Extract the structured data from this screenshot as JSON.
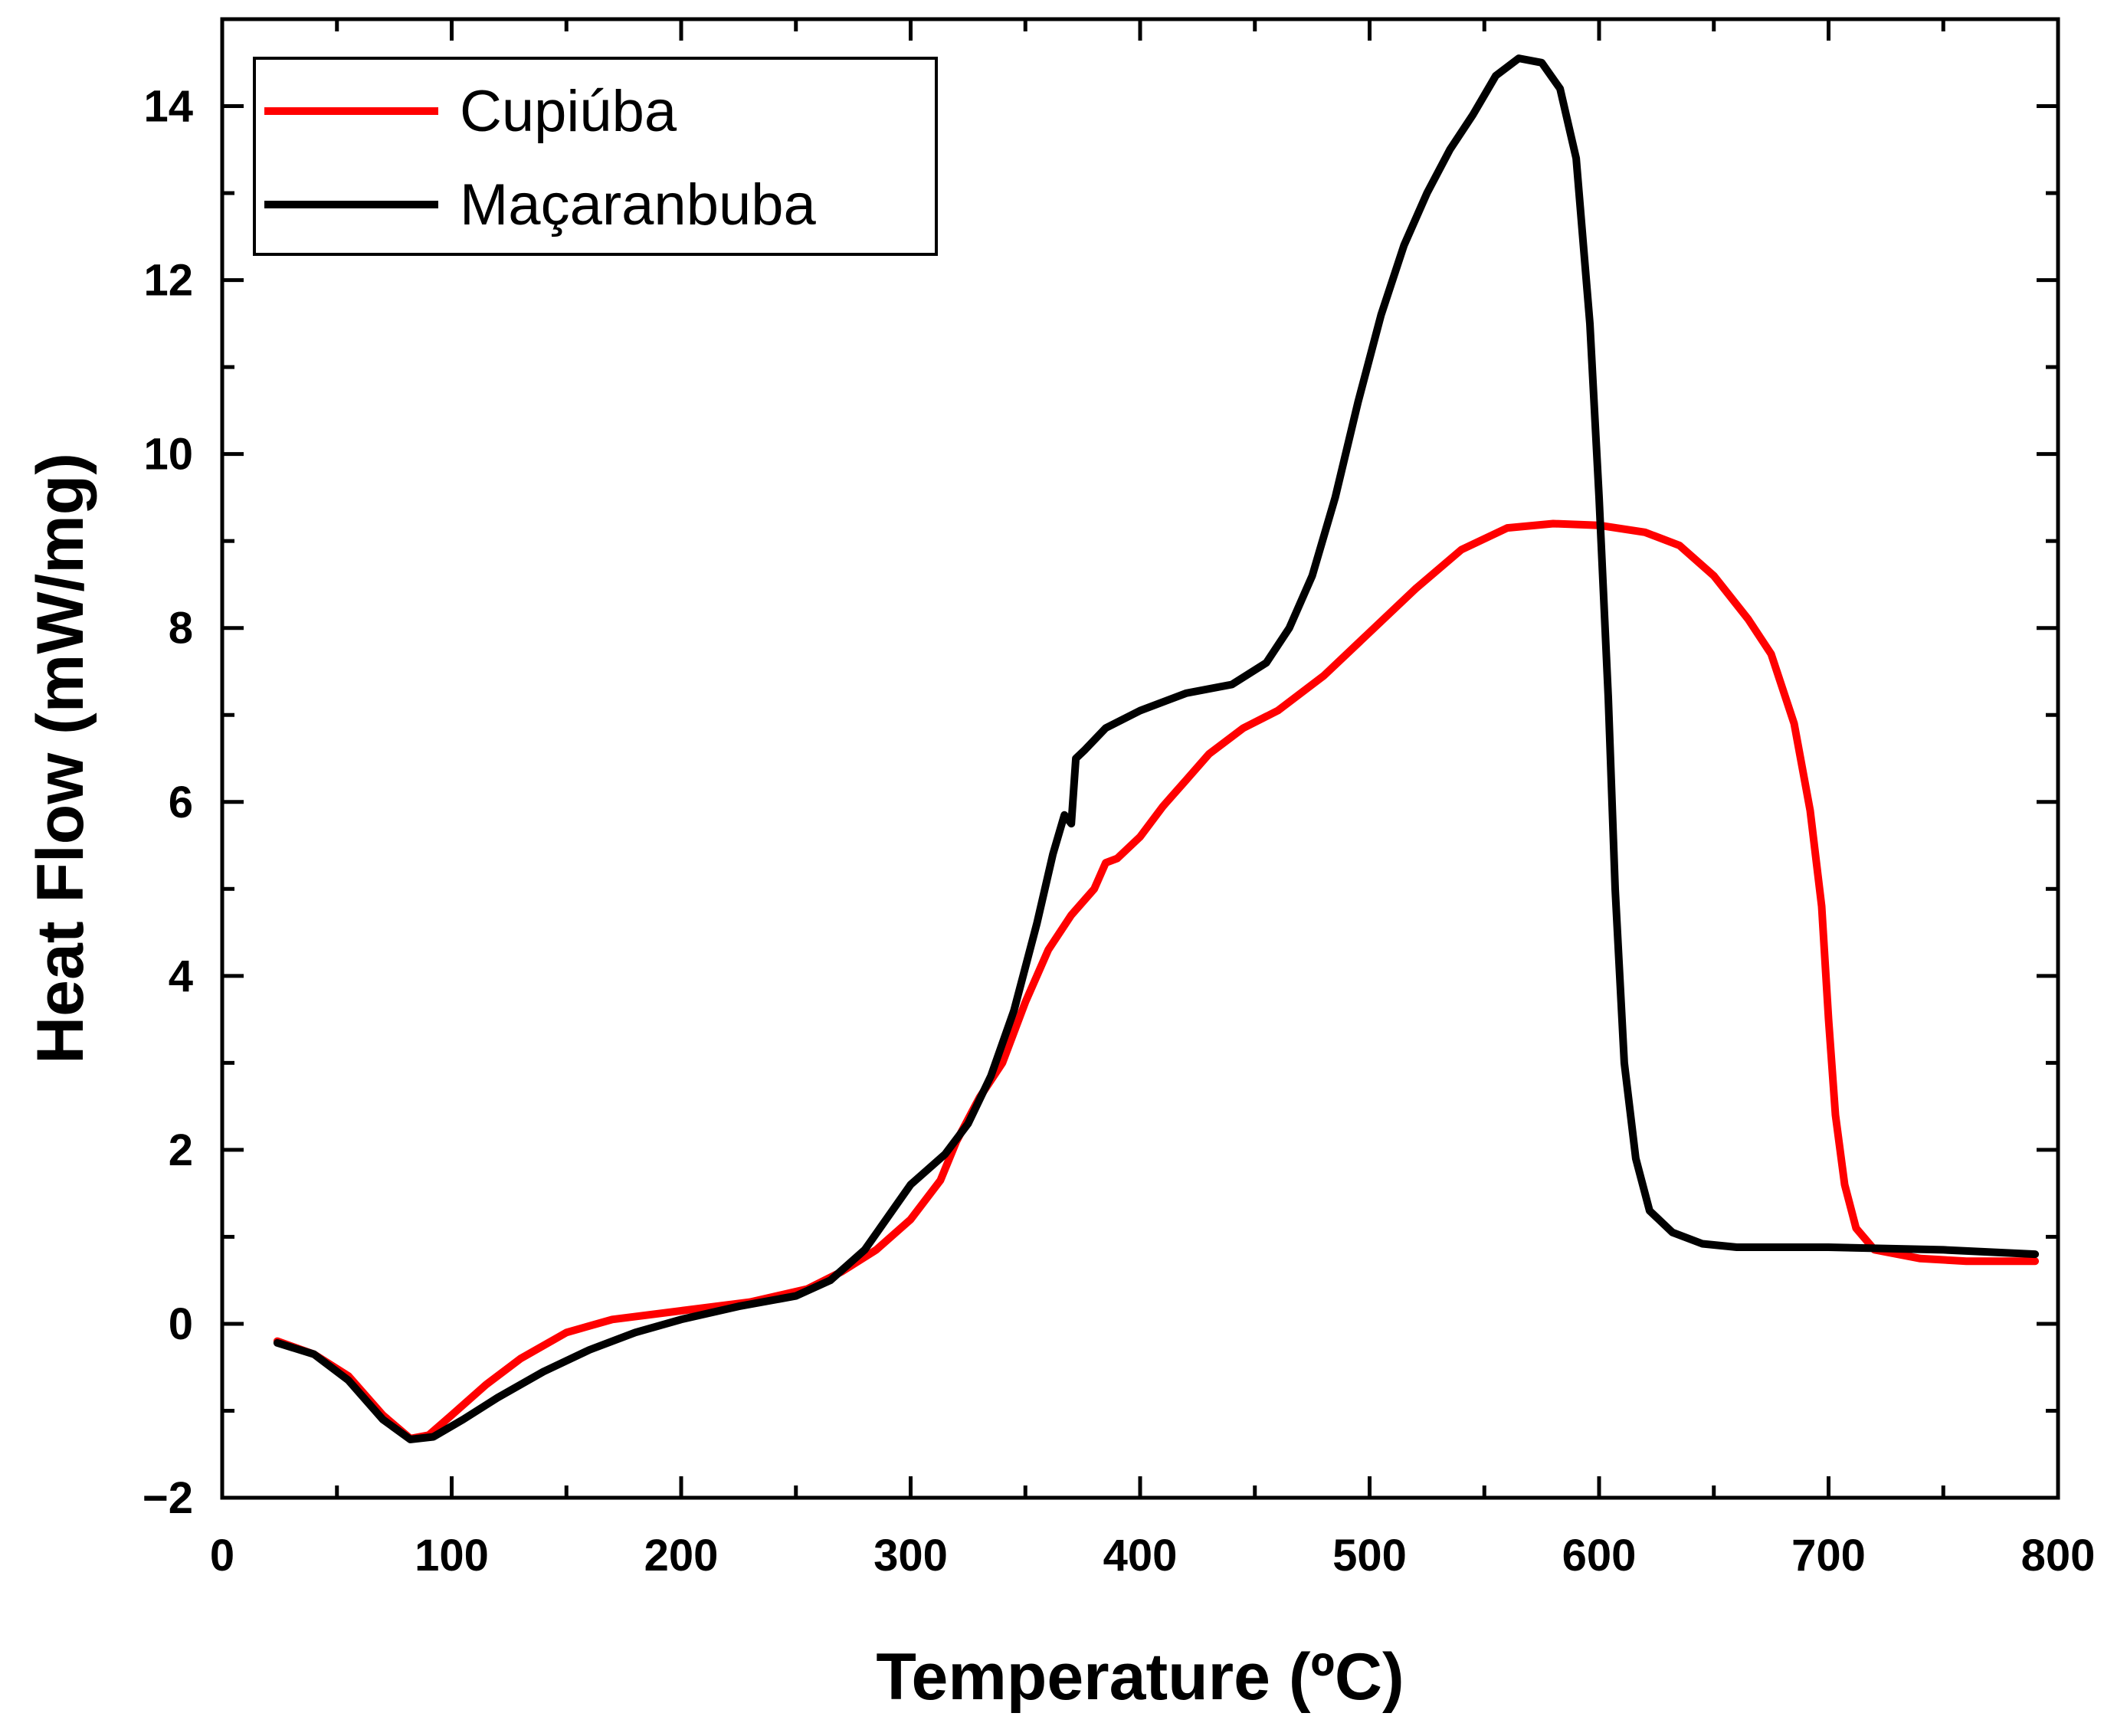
{
  "chart_data": {
    "type": "line",
    "title": "",
    "xlabel": "Temperature (ºC)",
    "ylabel": "Heat Flow (mW/mg)",
    "xlim": [
      0,
      800
    ],
    "ylim": [
      -2,
      15
    ],
    "x_ticks": [
      0,
      100,
      200,
      300,
      400,
      500,
      600,
      700,
      800
    ],
    "x_tick_labels": [
      "0",
      "100",
      "200",
      "300",
      "400",
      "500",
      "600",
      "700",
      "800"
    ],
    "y_ticks": [
      -2,
      0,
      2,
      4,
      6,
      8,
      10,
      12,
      14
    ],
    "y_tick_labels": [
      "−2",
      "0",
      "2",
      "4",
      "6",
      "8",
      "10",
      "12",
      "14"
    ],
    "grid": false,
    "legend_position": "top-left",
    "series": [
      {
        "name": "Cupiúba",
        "color": "#ff0000",
        "points": [
          [
            24,
            -0.2
          ],
          [
            40,
            -0.35
          ],
          [
            55,
            -0.6
          ],
          [
            70,
            -1.05
          ],
          [
            82,
            -1.32
          ],
          [
            90,
            -1.28
          ],
          [
            100,
            -1.05
          ],
          [
            115,
            -0.7
          ],
          [
            130,
            -0.4
          ],
          [
            150,
            -0.1
          ],
          [
            170,
            0.05
          ],
          [
            200,
            0.15
          ],
          [
            230,
            0.25
          ],
          [
            255,
            0.4
          ],
          [
            270,
            0.6
          ],
          [
            285,
            0.85
          ],
          [
            300,
            1.2
          ],
          [
            313,
            1.65
          ],
          [
            320,
            2.1
          ],
          [
            330,
            2.6
          ],
          [
            340,
            3.0
          ],
          [
            350,
            3.7
          ],
          [
            360,
            4.3
          ],
          [
            370,
            4.7
          ],
          [
            380,
            5.0
          ],
          [
            385,
            5.3
          ],
          [
            390,
            5.35
          ],
          [
            400,
            5.6
          ],
          [
            410,
            5.95
          ],
          [
            420,
            6.25
          ],
          [
            430,
            6.55
          ],
          [
            445,
            6.85
          ],
          [
            460,
            7.05
          ],
          [
            480,
            7.45
          ],
          [
            500,
            7.95
          ],
          [
            520,
            8.45
          ],
          [
            540,
            8.9
          ],
          [
            560,
            9.15
          ],
          [
            580,
            9.2
          ],
          [
            600,
            9.18
          ],
          [
            620,
            9.1
          ],
          [
            635,
            8.95
          ],
          [
            650,
            8.6
          ],
          [
            665,
            8.1
          ],
          [
            675,
            7.7
          ],
          [
            685,
            6.9
          ],
          [
            692,
            5.9
          ],
          [
            697,
            4.8
          ],
          [
            700,
            3.5
          ],
          [
            703,
            2.4
          ],
          [
            707,
            1.6
          ],
          [
            712,
            1.1
          ],
          [
            720,
            0.85
          ],
          [
            740,
            0.75
          ],
          [
            760,
            0.72
          ],
          [
            790,
            0.72
          ]
        ]
      },
      {
        "name": "Maçaranbuba",
        "color": "#000000",
        "points": [
          [
            24,
            -0.22
          ],
          [
            40,
            -0.35
          ],
          [
            55,
            -0.65
          ],
          [
            70,
            -1.1
          ],
          [
            82,
            -1.33
          ],
          [
            92,
            -1.3
          ],
          [
            105,
            -1.1
          ],
          [
            120,
            -0.85
          ],
          [
            140,
            -0.55
          ],
          [
            160,
            -0.3
          ],
          [
            180,
            -0.1
          ],
          [
            200,
            0.05
          ],
          [
            225,
            0.2
          ],
          [
            250,
            0.32
          ],
          [
            265,
            0.5
          ],
          [
            280,
            0.85
          ],
          [
            292,
            1.3
          ],
          [
            300,
            1.6
          ],
          [
            315,
            1.95
          ],
          [
            325,
            2.3
          ],
          [
            335,
            2.85
          ],
          [
            345,
            3.6
          ],
          [
            355,
            4.6
          ],
          [
            362,
            5.4
          ],
          [
            367,
            5.85
          ],
          [
            370,
            5.75
          ],
          [
            372,
            6.5
          ],
          [
            376,
            6.6
          ],
          [
            385,
            6.85
          ],
          [
            400,
            7.05
          ],
          [
            420,
            7.25
          ],
          [
            440,
            7.35
          ],
          [
            455,
            7.6
          ],
          [
            465,
            8.0
          ],
          [
            475,
            8.6
          ],
          [
            485,
            9.5
          ],
          [
            495,
            10.6
          ],
          [
            505,
            11.6
          ],
          [
            515,
            12.4
          ],
          [
            525,
            13.0
          ],
          [
            535,
            13.5
          ],
          [
            545,
            13.9
          ],
          [
            555,
            14.35
          ],
          [
            565,
            14.55
          ],
          [
            575,
            14.5
          ],
          [
            583,
            14.2
          ],
          [
            590,
            13.4
          ],
          [
            596,
            11.5
          ],
          [
            600,
            9.5
          ],
          [
            604,
            7.2
          ],
          [
            607,
            5.0
          ],
          [
            611,
            3.0
          ],
          [
            616,
            1.9
          ],
          [
            622,
            1.3
          ],
          [
            632,
            1.05
          ],
          [
            645,
            0.92
          ],
          [
            660,
            0.88
          ],
          [
            700,
            0.88
          ],
          [
            750,
            0.85
          ],
          [
            790,
            0.8
          ]
        ]
      }
    ]
  }
}
